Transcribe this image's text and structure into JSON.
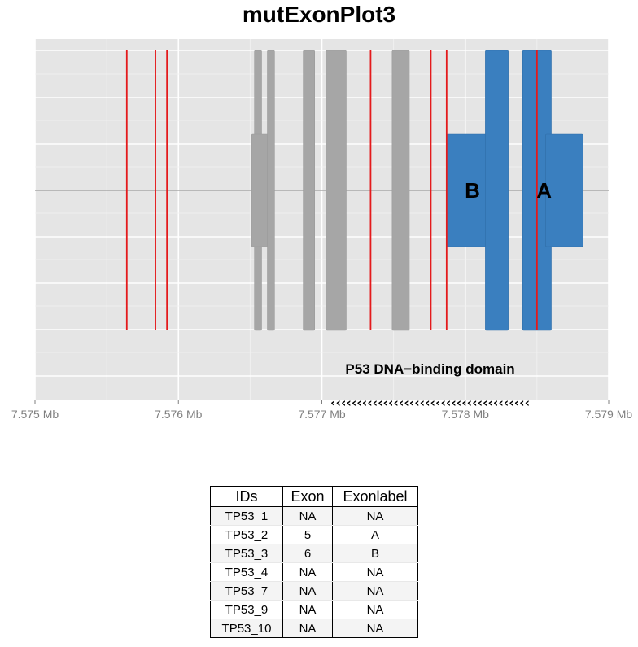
{
  "chart_data": {
    "type": "genomic-track",
    "title": "mutExonPlot3",
    "xlabel": "",
    "ylabel": "",
    "xlim_mb": [
      7.575,
      7.579
    ],
    "x_ticks": [
      {
        "value": 7.575,
        "label": "7.575 Mb"
      },
      {
        "value": 7.576,
        "label": "7.576 Mb"
      },
      {
        "value": 7.577,
        "label": "7.577 Mb"
      },
      {
        "value": 7.578,
        "label": "7.578 Mb"
      },
      {
        "value": 7.579,
        "label": "7.579 Mb"
      }
    ],
    "grid": true,
    "baseline_color": "#aaaaaa",
    "mutation_color": "#e41a1c",
    "exon_color": "#a6a6a6",
    "highlight_color": "#3a7fbf",
    "exons": [
      {
        "start": 7.57653,
        "end": 7.57658,
        "height": "full",
        "highlight": false
      },
      {
        "start": 7.57651,
        "end": 7.57663,
        "height": "half",
        "highlight": false
      },
      {
        "start": 7.57662,
        "end": 7.57667,
        "height": "full",
        "highlight": false
      },
      {
        "start": 7.57687,
        "end": 7.57695,
        "height": "full",
        "highlight": false
      },
      {
        "start": 7.57703,
        "end": 7.57717,
        "height": "full",
        "highlight": false
      },
      {
        "start": 7.57749,
        "end": 7.57761,
        "height": "full",
        "highlight": false
      },
      {
        "start": 7.57787,
        "end": 7.57817,
        "height": "half",
        "highlight": true
      },
      {
        "start": 7.57814,
        "end": 7.5783,
        "height": "full",
        "highlight": true
      },
      {
        "start": 7.5784,
        "end": 7.5786,
        "height": "full",
        "highlight": true
      },
      {
        "start": 7.57856,
        "end": 7.57882,
        "height": "half",
        "highlight": true
      }
    ],
    "exon_labels": [
      {
        "label": "B",
        "x": 7.57805
      },
      {
        "label": "A",
        "x": 7.57855
      }
    ],
    "mutations": [
      7.57564,
      7.57584,
      7.57592,
      7.57734,
      7.57776,
      7.57787,
      7.5785
    ],
    "domain": {
      "name": "P53 DNA−binding domain",
      "start": 7.57706,
      "end": 7.57845,
      "arrows": "‹‹‹‹‹‹‹‹‹‹‹‹‹‹‹‹‹‹‹‹‹‹‹‹‹‹‹‹‹‹‹‹‹‹‹‹‹‹"
    }
  },
  "table": {
    "headers": [
      "IDs",
      "Exon",
      "Exonlabel"
    ],
    "rows": [
      [
        "TP53_1",
        "NA",
        "NA"
      ],
      [
        "TP53_2",
        "5",
        "A"
      ],
      [
        "TP53_3",
        "6",
        "B"
      ],
      [
        "TP53_4",
        "NA",
        "NA"
      ],
      [
        "TP53_7",
        "NA",
        "NA"
      ],
      [
        "TP53_9",
        "NA",
        "NA"
      ],
      [
        "TP53_10",
        "NA",
        "NA"
      ]
    ]
  }
}
